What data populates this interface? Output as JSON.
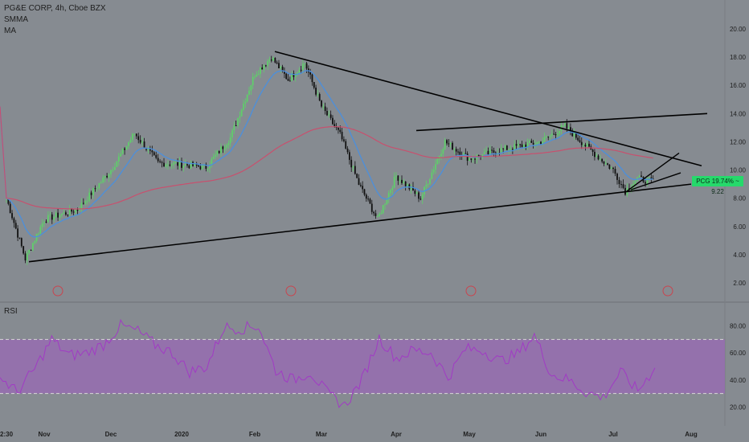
{
  "legend": {
    "title": "PG&E CORP, 4h, Cboe BZX",
    "indicator_1": "SMMA",
    "indicator_2": "MA"
  },
  "rsi_label": "RSI",
  "price_tag": "PCG 19.74% ~ 9.22",
  "colors": {
    "background": "#868b91",
    "up_candle": "#5fd06a",
    "down_candle": "#111111",
    "smma": "#4f8fd8",
    "ma": "#c8506e",
    "trendline": "#000000",
    "rsi_line": "#a13bc4",
    "rsi_band": "#9868b6",
    "event_marker": "#c9454f"
  },
  "chart_data": [
    {
      "type": "candlestick",
      "title": "PG&E CORP, 4h, Cboe BZX",
      "y_ticks": [
        "20.00",
        "18.00",
        "16.00",
        "14.00",
        "12.00",
        "10.00",
        "8.00",
        "6.00",
        "4.00",
        "2.00"
      ],
      "ylim": [
        2,
        20
      ],
      "x_ticks": [
        "2:30",
        "Nov",
        "Dec",
        "2020",
        "Feb",
        "Mar",
        "Apr",
        "May",
        "Jun",
        "Jul",
        "Aug"
      ],
      "series": [
        {
          "kind": "candles",
          "approx_price_path": [
            {
              "x": "Oct",
              "y": 8.0
            },
            {
              "x": "Oct",
              "y": 3.7
            },
            {
              "x": "Nov",
              "y": 6.5
            },
            {
              "x": "Nov",
              "y": 7.2
            },
            {
              "x": "Dec",
              "y": 10.0
            },
            {
              "x": "Dec",
              "y": 12.6
            },
            {
              "x": "Dec",
              "y": 10.5
            },
            {
              "x": "2020",
              "y": 10.4
            },
            {
              "x": "2020",
              "y": 10.2
            },
            {
              "x": "2020",
              "y": 12.3
            },
            {
              "x": "Feb",
              "y": 16.8
            },
            {
              "x": "Feb",
              "y": 18.0
            },
            {
              "x": "Feb",
              "y": 16.4
            },
            {
              "x": "Feb",
              "y": 17.6
            },
            {
              "x": "Mar",
              "y": 14.5
            },
            {
              "x": "Mar",
              "y": 12.5
            },
            {
              "x": "Mar",
              "y": 9.0
            },
            {
              "x": "Mar",
              "y": 6.5
            },
            {
              "x": "Apr",
              "y": 9.6
            },
            {
              "x": "Apr",
              "y": 8.0
            },
            {
              "x": "Apr",
              "y": 12.0
            },
            {
              "x": "May",
              "y": 10.8
            },
            {
              "x": "May",
              "y": 11.5
            },
            {
              "x": "Jun",
              "y": 12.0
            },
            {
              "x": "Jun",
              "y": 13.1
            },
            {
              "x": "Jun",
              "y": 11.5
            },
            {
              "x": "Jul",
              "y": 10.0
            },
            {
              "x": "Jul",
              "y": 8.5
            },
            {
              "x": "Jul",
              "y": 9.4
            },
            {
              "x": "Jul",
              "y": 9.22
            }
          ]
        },
        {
          "kind": "smma",
          "name": "SMMA"
        },
        {
          "kind": "ma",
          "name": "MA"
        }
      ],
      "trendlines": [
        {
          "from": {
            "x": "Oct",
            "y": 3.5
          },
          "to": {
            "x": "Jul",
            "y": 9.0
          }
        },
        {
          "from": {
            "x": "Feb",
            "y": 18.4
          },
          "to": {
            "x": "Aug",
            "y": 10.3
          }
        },
        {
          "from": {
            "x": "Apr",
            "y": 12.8
          },
          "to": {
            "x": "Aug",
            "y": 14.0
          }
        }
      ],
      "last_price": 9.22
    },
    {
      "type": "line",
      "name": "RSI",
      "y_ticks": [
        "80.00",
        "60.00",
        "40.00",
        "20.00"
      ],
      "ylim": [
        12,
        88
      ],
      "band": [
        30,
        70
      ],
      "values": [
        42,
        31,
        48,
        70,
        58,
        60,
        66,
        80,
        76,
        66,
        60,
        46,
        50,
        79,
        78,
        80,
        47,
        40,
        46,
        30,
        21,
        40,
        71,
        56,
        62,
        60,
        42,
        63,
        62,
        54,
        59,
        73,
        44,
        40,
        31,
        27,
        46,
        32,
        49
      ]
    }
  ]
}
